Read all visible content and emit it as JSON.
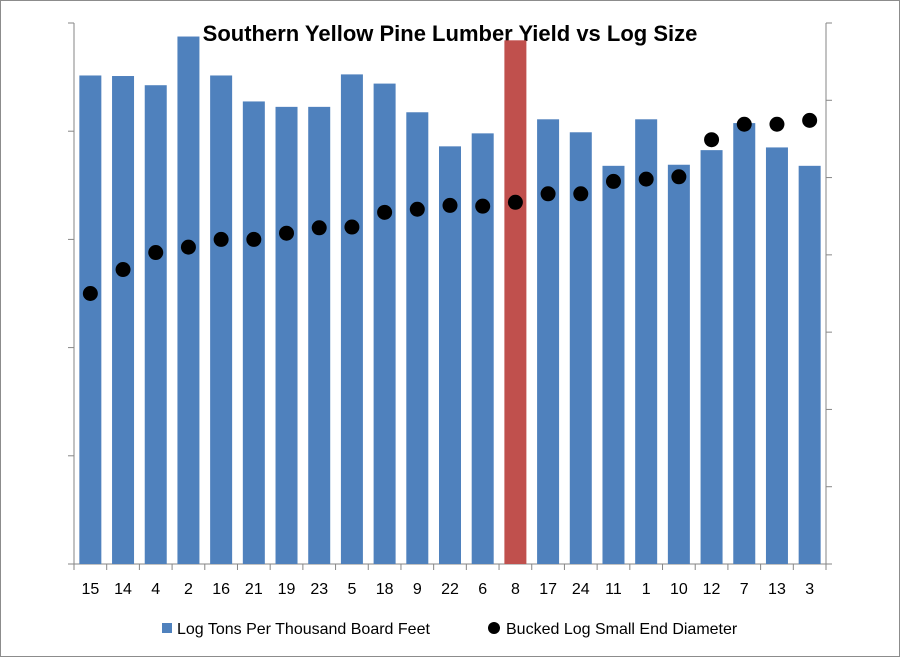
{
  "chart_data": {
    "type": "bar",
    "title": "Southern Yellow Pine Lumber Yield vs Log Size",
    "xlabel": "",
    "ylabel": "",
    "categories": [
      "15",
      "14",
      "4",
      "2",
      "16",
      "21",
      "19",
      "23",
      "5",
      "18",
      "9",
      "22",
      "6",
      "8",
      "17",
      "24",
      "11",
      "1",
      "10",
      "12",
      "7",
      "13",
      "3"
    ],
    "y_left_range": [
      0,
      10
    ],
    "y_right_range": [
      0,
      7
    ],
    "grid": false,
    "legend_position": "bottom",
    "highlight": {
      "category": "8",
      "color": "#C0504D"
    },
    "series": [
      {
        "name": "Log Tons Per Thousand Board Feet",
        "type": "bar",
        "axis": "left",
        "color": "#4F81BD",
        "values": [
          9.03,
          9.02,
          8.85,
          9.75,
          9.03,
          8.55,
          8.45,
          8.45,
          9.05,
          8.88,
          8.35,
          7.72,
          7.96,
          9.68,
          8.22,
          7.98,
          7.36,
          8.22,
          7.38,
          7.65,
          8.15,
          7.7,
          7.36
        ]
      },
      {
        "name": "Bucked Log Small End Diameter",
        "type": "scatter",
        "axis": "right",
        "color": "#000000",
        "values": [
          3.5,
          3.81,
          4.03,
          4.1,
          4.2,
          4.2,
          4.28,
          4.35,
          4.36,
          4.55,
          4.59,
          4.64,
          4.63,
          4.68,
          4.79,
          4.79,
          4.95,
          4.98,
          5.01,
          5.49,
          5.69,
          5.69,
          5.74
        ]
      }
    ]
  }
}
